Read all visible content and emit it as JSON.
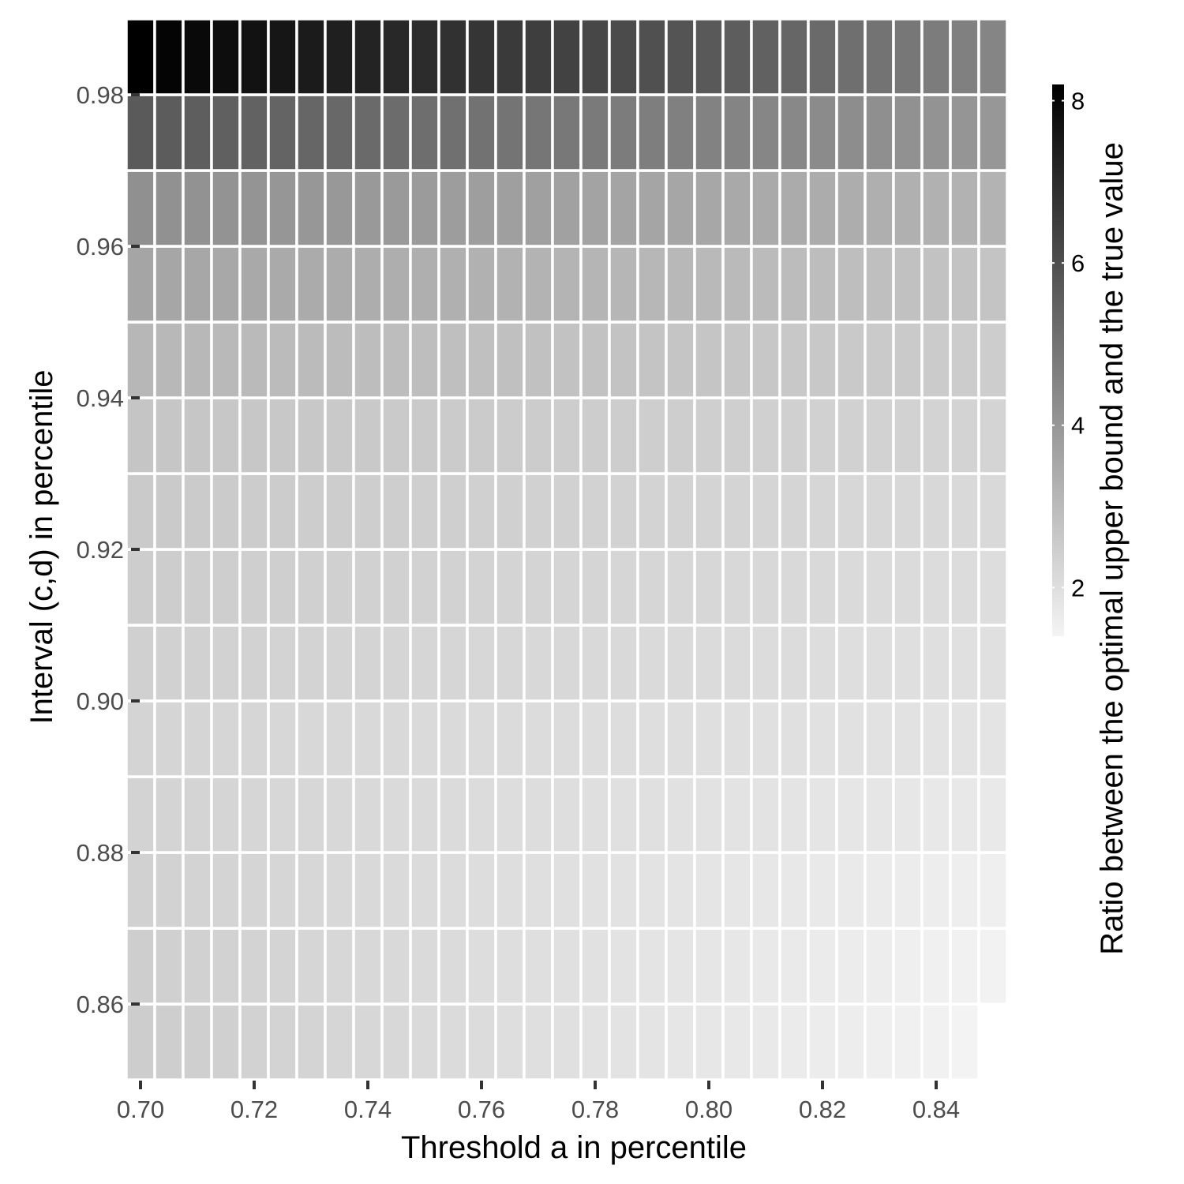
{
  "chart_data": {
    "type": "heatmap",
    "title": "",
    "xlabel": "Threshold a in percentile",
    "ylabel": "Interval (c,d) in percentile",
    "x": {
      "values": [
        0.7,
        0.705,
        0.71,
        0.715,
        0.72,
        0.725,
        0.73,
        0.735,
        0.74,
        0.745,
        0.75,
        0.755,
        0.76,
        0.765,
        0.77,
        0.775,
        0.78,
        0.785,
        0.79,
        0.795,
        0.8,
        0.805,
        0.81,
        0.815,
        0.82,
        0.825,
        0.83,
        0.835,
        0.84,
        0.845,
        0.85
      ],
      "range": [
        0.7,
        0.8525
      ],
      "ticks": [
        0.7,
        0.72,
        0.74,
        0.76,
        0.78,
        0.8,
        0.82,
        0.84
      ],
      "tick_labels": [
        "0.70",
        "0.72",
        "0.74",
        "0.76",
        "0.78",
        "0.80",
        "0.82",
        "0.84"
      ]
    },
    "y": {
      "values": [
        0.855,
        0.865,
        0.875,
        0.885,
        0.895,
        0.905,
        0.915,
        0.925,
        0.935,
        0.945,
        0.955,
        0.965,
        0.975,
        0.985
      ],
      "range": [
        0.85,
        0.99
      ],
      "ticks": [
        0.86,
        0.88,
        0.9,
        0.92,
        0.94,
        0.96,
        0.98
      ],
      "tick_labels": [
        "0.86",
        "0.88",
        "0.90",
        "0.92",
        "0.94",
        "0.96",
        "0.98"
      ]
    },
    "colorbar": {
      "title": "Ratio between the optimal upper bound and the true value",
      "range": [
        1.4,
        8.2
      ],
      "ticks": [
        2,
        4,
        6,
        8
      ],
      "tick_labels": [
        "2",
        "4",
        "6",
        "8"
      ],
      "low_color": "#f4f4f4",
      "high_color": "#000000"
    },
    "grid": false,
    "legend": "right",
    "value_model": {
      "rows_low": [
        2.5,
        2.45,
        2.38,
        2.32,
        2.28,
        2.4,
        2.5,
        2.58,
        2.7,
        3.1,
        3.6,
        4.2,
        5.7,
        8.2
      ],
      "rows_high": [
        1.4,
        1.45,
        1.55,
        1.7,
        1.85,
        1.95,
        2.05,
        2.15,
        2.3,
        2.5,
        2.75,
        3.2,
        4.0,
        4.5
      ],
      "missing": [
        [
          0,
          30
        ]
      ]
    }
  }
}
